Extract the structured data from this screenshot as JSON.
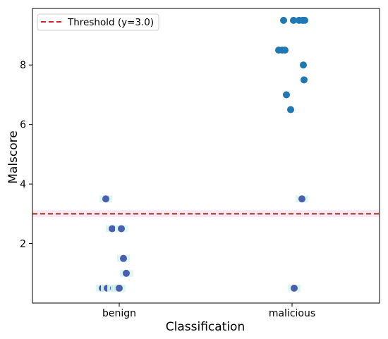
{
  "chart_data": {
    "type": "scatter",
    "title": "",
    "xlabel": "Classification",
    "ylabel": "Malscore",
    "categories": [
      "benign",
      "malicious"
    ],
    "ylim": [
      0,
      9.9
    ],
    "yticks": [
      2,
      4,
      6,
      8
    ],
    "grid": false,
    "legend": {
      "placement": "top-left",
      "entries": [
        "Threshold (y=3.0)"
      ]
    },
    "threshold": {
      "value": 3.0,
      "label": "Threshold (y=3.0)",
      "color": "#d62728",
      "style": "dashed"
    },
    "series": [
      {
        "category": "benign",
        "points": [
          {
            "jitter": -0.19,
            "y": 3.5
          },
          {
            "jitter": -0.1,
            "y": 2.5
          },
          {
            "jitter": 0.03,
            "y": 2.5
          },
          {
            "jitter": 0.06,
            "y": 1.5
          },
          {
            "jitter": 0.1,
            "y": 1.0
          },
          {
            "jitter": -0.24,
            "y": 0.5
          },
          {
            "jitter": -0.17,
            "y": 0.5
          },
          {
            "jitter": -0.08,
            "y": 0.5
          },
          {
            "jitter": -0.03,
            "y": 0.5
          },
          {
            "jitter": 0.0,
            "y": 0.5
          }
        ]
      },
      {
        "category": "malicious",
        "points": [
          {
            "jitter": -0.12,
            "y": 9.5
          },
          {
            "jitter": 0.02,
            "y": 9.5
          },
          {
            "jitter": 0.1,
            "y": 9.5
          },
          {
            "jitter": 0.15,
            "y": 9.5
          },
          {
            "jitter": 0.18,
            "y": 9.5
          },
          {
            "jitter": -0.19,
            "y": 8.5
          },
          {
            "jitter": -0.14,
            "y": 8.5
          },
          {
            "jitter": -0.1,
            "y": 8.5
          },
          {
            "jitter": 0.16,
            "y": 8.0
          },
          {
            "jitter": 0.17,
            "y": 7.5
          },
          {
            "jitter": -0.08,
            "y": 7.0
          },
          {
            "jitter": -0.02,
            "y": 6.5
          },
          {
            "jitter": 0.14,
            "y": 3.5
          },
          {
            "jitter": 0.03,
            "y": 0.5
          }
        ]
      }
    ],
    "colors": {
      "point": "#1f77b4",
      "point_below_threshold": "#4a5fb0",
      "threshold_line": "#8b3a1a",
      "threshold_band": "#f7d6ea",
      "low_halo": "#d9f7f2"
    }
  }
}
